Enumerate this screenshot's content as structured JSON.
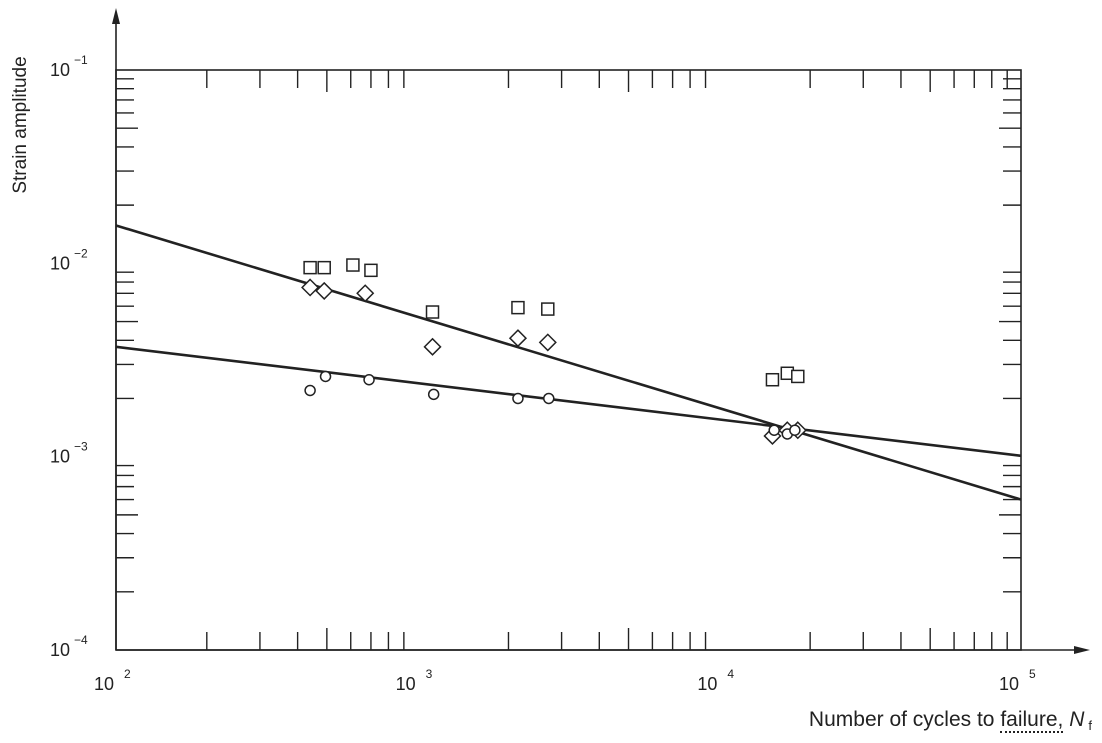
{
  "chart_data": {
    "type": "scatter",
    "title": "",
    "ylabel": "Strain amplitude",
    "xlabel": {
      "text": "Number of cycles to ",
      "underlined_text": "failure,",
      "symbol": "N",
      "subscript": "f"
    },
    "x_scale": "log",
    "y_scale": "log",
    "xlim": [
      100,
      100000
    ],
    "ylim": [
      0.0001,
      0.1
    ],
    "x_ticks": [
      {
        "base": "10",
        "exp": "2"
      },
      {
        "base": "10",
        "exp": "3"
      },
      {
        "base": "10",
        "exp": "4"
      },
      {
        "base": "10",
        "exp": "5"
      }
    ],
    "y_ticks": [
      {
        "base": "10",
        "exp": "−1"
      },
      {
        "base": "10",
        "exp": "−2"
      },
      {
        "base": "10",
        "exp": "−3"
      },
      {
        "base": "10",
        "exp": "−4"
      }
    ],
    "grid": false,
    "series": [
      {
        "marker": "square",
        "points": [
          {
            "x": 440,
            "y": 0.0095
          },
          {
            "x": 490,
            "y": 0.0095
          },
          {
            "x": 610,
            "y": 0.0098
          },
          {
            "x": 700,
            "y": 0.0092
          },
          {
            "x": 1120,
            "y": 0.0056
          },
          {
            "x": 2150,
            "y": 0.0059
          },
          {
            "x": 2700,
            "y": 0.0058
          },
          {
            "x": 15000,
            "y": 0.0025
          },
          {
            "x": 16800,
            "y": 0.0027
          },
          {
            "x": 18200,
            "y": 0.0026
          }
        ]
      },
      {
        "marker": "diamond",
        "points": [
          {
            "x": 440,
            "y": 0.0075
          },
          {
            "x": 490,
            "y": 0.0072
          },
          {
            "x": 670,
            "y": 0.007
          },
          {
            "x": 1120,
            "y": 0.0037
          },
          {
            "x": 2150,
            "y": 0.0041
          },
          {
            "x": 2700,
            "y": 0.0039
          },
          {
            "x": 15000,
            "y": 0.00128
          },
          {
            "x": 16800,
            "y": 0.00137
          },
          {
            "x": 18200,
            "y": 0.00137
          }
        ]
      },
      {
        "marker": "circle",
        "points": [
          {
            "x": 440,
            "y": 0.0022
          },
          {
            "x": 495,
            "y": 0.0026
          },
          {
            "x": 690,
            "y": 0.0025
          },
          {
            "x": 1130,
            "y": 0.0021
          },
          {
            "x": 2150,
            "y": 0.002
          },
          {
            "x": 2720,
            "y": 0.002
          },
          {
            "x": 15200,
            "y": 0.00137
          },
          {
            "x": 16800,
            "y": 0.00131
          },
          {
            "x": 17800,
            "y": 0.00137
          }
        ]
      }
    ],
    "lines": [
      {
        "x": [
          100,
          100000
        ],
        "y": [
          0.0157,
          0.0006
        ]
      },
      {
        "x": [
          100,
          100000
        ],
        "y": [
          0.0037,
          0.00101
        ]
      }
    ]
  }
}
